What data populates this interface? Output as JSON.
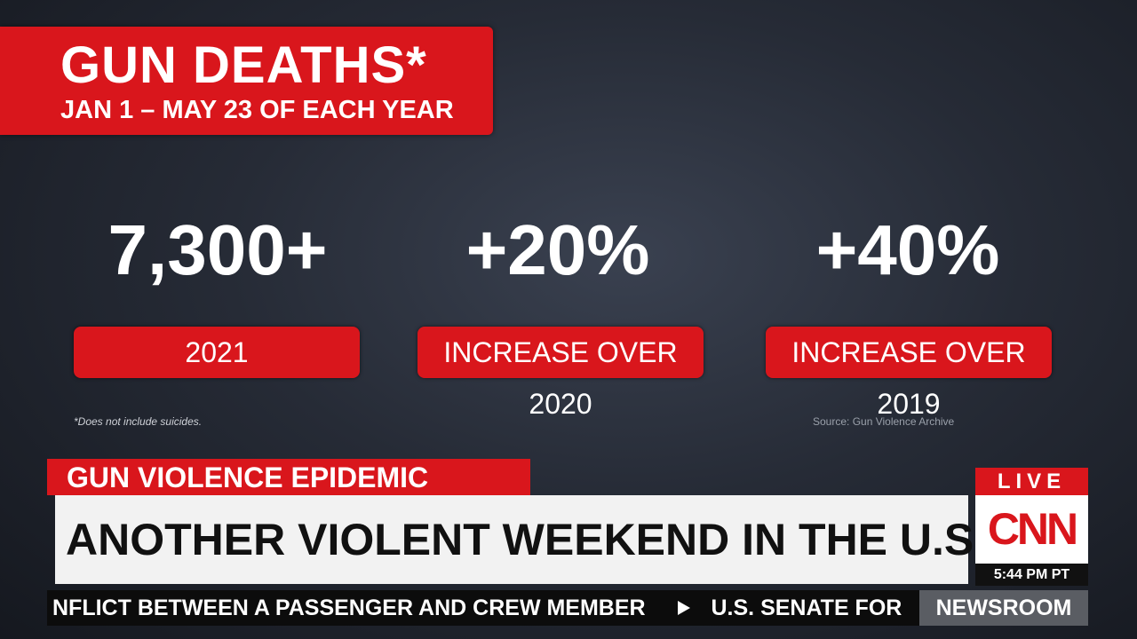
{
  "header": {
    "title": "GUN DEATHS*",
    "subtitle": "JAN 1 – MAY 23 OF EACH YEAR"
  },
  "stats": [
    {
      "value": "7,300+",
      "label": "2021"
    },
    {
      "value": "+20%",
      "label": "INCREASE OVER 2020"
    },
    {
      "value": "+40%",
      "label": "INCREASE OVER 2019"
    }
  ],
  "footnote": "*Does not include suicides.",
  "source": "Source: Gun Violence Archive",
  "lower_third": {
    "kicker": "GUN VIOLENCE EPIDEMIC",
    "headline": "ANOTHER VIOLENT WEEKEND IN THE U.S."
  },
  "bug": {
    "live": "LIVE",
    "network": "CNN",
    "time": "5:44 PM PT"
  },
  "ticker": {
    "items": [
      "NFLICT BETWEEN A PASSENGER AND CREW MEMBER",
      "U.S. SENATE FOR"
    ],
    "show": "NEWSROOM"
  }
}
